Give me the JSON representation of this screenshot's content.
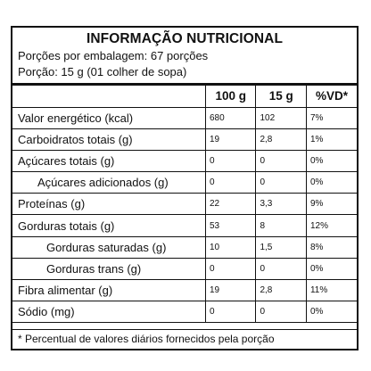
{
  "title": "INFORMAÇÃO NUTRICIONAL",
  "servings_per_package": "Porções por embalagem: 67 porções",
  "serving_size": "Porção: 15 g (01 colher de sopa)",
  "headers": [
    "",
    "100 g",
    "15 g",
    "%VD*"
  ],
  "rows": [
    {
      "label": "Valor energético (kcal)",
      "v100": "680",
      "v15": "102",
      "vd": "7%"
    },
    {
      "label": "Carboidratos totais (g)",
      "v100": "19",
      "v15": "2,8",
      "vd": "1%"
    },
    {
      "label": "Açúcares totais (g)",
      "v100": "0",
      "v15": "0",
      "vd": "0%"
    },
    {
      "label": "Açúcares adicionados (g)",
      "v100": "0",
      "v15": "0",
      "vd": "0%"
    },
    {
      "label": "Proteínas (g)",
      "v100": "22",
      "v15": "3,3",
      "vd": "9%"
    },
    {
      "label": "Gorduras totais (g)",
      "v100": "53",
      "v15": "8",
      "vd": "12%"
    },
    {
      "label": "Gorduras saturadas (g)",
      "v100": "10",
      "v15": "1,5",
      "vd": "8%"
    },
    {
      "label": "Gorduras trans (g)",
      "v100": "0",
      "v15": "0",
      "vd": "0%"
    },
    {
      "label": "Fibra alimentar (g)",
      "v100": "19",
      "v15": "2,8",
      "vd": "11%"
    },
    {
      "label": "Sódio (mg)",
      "v100": "0",
      "v15": "0",
      "vd": "0%"
    }
  ],
  "footnote": "* Percentual de valores diários fornecidos pela porção"
}
